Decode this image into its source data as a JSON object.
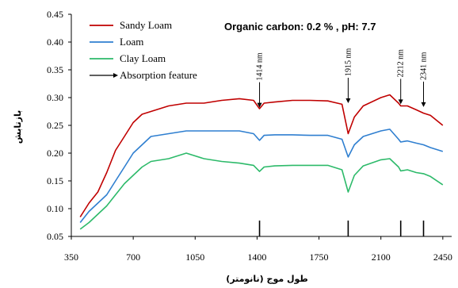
{
  "chart_data": {
    "type": "line",
    "xlabel": "طول موج (نانومتر)",
    "ylabel": "بازتابش",
    "xlim": [
      350,
      2500
    ],
    "ylim": [
      0.05,
      0.45
    ],
    "x_ticks": [
      350,
      700,
      1050,
      1400,
      1750,
      2100,
      2450
    ],
    "y_ticks": [
      0.05,
      0.1,
      0.15,
      0.2,
      0.25,
      0.3,
      0.35,
      0.4,
      0.45
    ],
    "legend_position": "top-left",
    "annotation": "Organic carbon: 0.2 % , pH: 7.7",
    "series": [
      {
        "name": "Sandy Loam",
        "color": "#c00000",
        "x": [
          400,
          450,
          500,
          550,
          600,
          650,
          700,
          750,
          800,
          900,
          1000,
          1100,
          1200,
          1300,
          1380,
          1414,
          1440,
          1500,
          1600,
          1700,
          1800,
          1880,
          1915,
          1950,
          2000,
          2100,
          2150,
          2200,
          2212,
          2250,
          2300,
          2341,
          2380,
          2450
        ],
        "y": [
          0.085,
          0.11,
          0.13,
          0.165,
          0.205,
          0.23,
          0.255,
          0.27,
          0.275,
          0.285,
          0.29,
          0.29,
          0.295,
          0.298,
          0.295,
          0.28,
          0.29,
          0.292,
          0.295,
          0.295,
          0.294,
          0.288,
          0.235,
          0.265,
          0.285,
          0.3,
          0.305,
          0.29,
          0.285,
          0.285,
          0.278,
          0.272,
          0.268,
          0.25
        ]
      },
      {
        "name": "Loam",
        "color": "#2f7fd0",
        "x": [
          400,
          450,
          500,
          550,
          600,
          650,
          700,
          750,
          800,
          900,
          1000,
          1100,
          1200,
          1300,
          1380,
          1414,
          1440,
          1500,
          1600,
          1700,
          1800,
          1880,
          1915,
          1950,
          2000,
          2100,
          2150,
          2200,
          2212,
          2250,
          2300,
          2341,
          2380,
          2450
        ],
        "y": [
          0.075,
          0.095,
          0.11,
          0.125,
          0.15,
          0.175,
          0.2,
          0.215,
          0.23,
          0.235,
          0.24,
          0.24,
          0.24,
          0.24,
          0.235,
          0.223,
          0.232,
          0.233,
          0.233,
          0.232,
          0.232,
          0.225,
          0.193,
          0.215,
          0.23,
          0.24,
          0.243,
          0.225,
          0.22,
          0.222,
          0.218,
          0.215,
          0.21,
          0.203
        ]
      },
      {
        "name": "Clay Loam",
        "color": "#2dba6a",
        "x": [
          400,
          450,
          500,
          550,
          600,
          650,
          700,
          750,
          800,
          900,
          1000,
          1100,
          1200,
          1300,
          1380,
          1414,
          1440,
          1500,
          1600,
          1700,
          1800,
          1880,
          1915,
          1950,
          2000,
          2100,
          2150,
          2200,
          2212,
          2250,
          2300,
          2341,
          2380,
          2450
        ],
        "y": [
          0.063,
          0.075,
          0.09,
          0.105,
          0.125,
          0.145,
          0.16,
          0.175,
          0.185,
          0.19,
          0.2,
          0.19,
          0.185,
          0.182,
          0.178,
          0.167,
          0.175,
          0.177,
          0.178,
          0.178,
          0.178,
          0.17,
          0.13,
          0.16,
          0.177,
          0.188,
          0.19,
          0.175,
          0.168,
          0.17,
          0.165,
          0.163,
          0.158,
          0.143
        ]
      }
    ],
    "absorption_features": {
      "name": "Absorption feature",
      "color": "#000000",
      "items": [
        {
          "x": 1414,
          "label": "1414 nm",
          "arrow_tip_y": 0.282
        },
        {
          "x": 1915,
          "label": "1915 nm",
          "arrow_tip_y": 0.29
        },
        {
          "x": 2212,
          "label": "2212 nm",
          "arrow_tip_y": 0.288
        },
        {
          "x": 2341,
          "label": "2341 nm",
          "arrow_tip_y": 0.283
        }
      ]
    }
  }
}
